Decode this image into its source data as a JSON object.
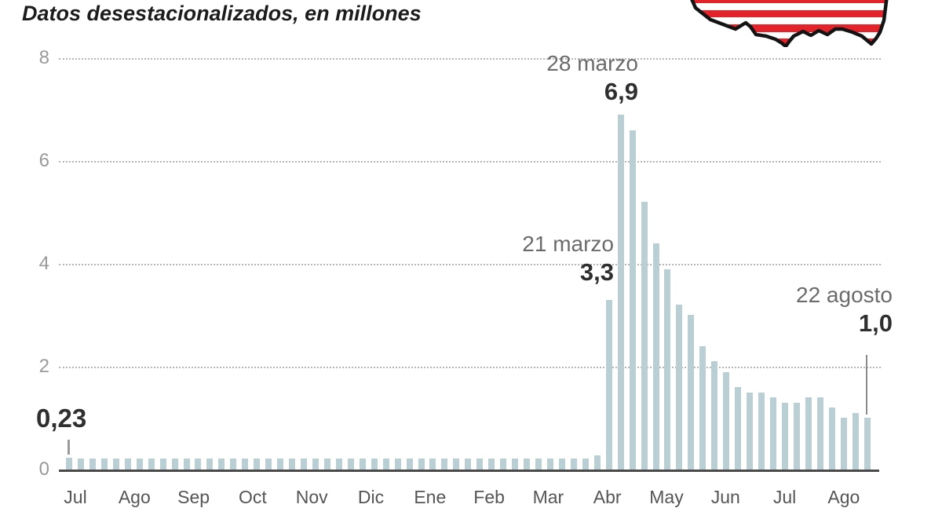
{
  "title": "Datos desestacionalizados, en millones",
  "y_axis": {
    "ticks": [
      8,
      6,
      4,
      2,
      0
    ]
  },
  "x_axis": {
    "month_labels": [
      "Jul",
      "Ago",
      "Sep",
      "Oct",
      "Nov",
      "Dic",
      "Ene",
      "Feb",
      "Mar",
      "Abr",
      "May",
      "Jun",
      "Jul",
      "Ago"
    ]
  },
  "annotations": {
    "first_bar": {
      "value": "0,23"
    },
    "mar21": {
      "date": "21 marzo",
      "value": "3,3"
    },
    "mar28": {
      "date": "28 marzo",
      "value": "6,9"
    },
    "aug22": {
      "date": "22 agosto",
      "value": "1,0"
    }
  },
  "icons": {
    "us_map": {
      "name": "us-map-flag-icon",
      "stripe_red": "#e2232a",
      "stripe_white": "#ffffff",
      "outline": "#141414"
    }
  },
  "colors": {
    "bar": "#b9cfd3",
    "grid": "#b5b5b5",
    "baseline": "#4a4a4a",
    "y_label": "#9a9a9a",
    "month_label": "#555555",
    "date_text": "#6b6b6b",
    "value_text": "#2f2f2f",
    "title": "#1c1c1c"
  },
  "chart_data": {
    "type": "bar",
    "title": "Datos desestacionalizados, en millones",
    "unit": "millones",
    "ylabel": "",
    "xlabel": "",
    "ylim": [
      0,
      8
    ],
    "y_ticks": [
      0,
      2,
      4,
      6,
      8
    ],
    "grid": "dotted horizontal",
    "frequency": "semanal",
    "values": [
      0.23,
      0.22,
      0.21,
      0.22,
      0.21,
      0.22,
      0.22,
      0.21,
      0.22,
      0.21,
      0.21,
      0.22,
      0.21,
      0.22,
      0.22,
      0.21,
      0.22,
      0.21,
      0.22,
      0.21,
      0.22,
      0.22,
      0.21,
      0.22,
      0.21,
      0.22,
      0.21,
      0.21,
      0.22,
      0.21,
      0.22,
      0.22,
      0.21,
      0.22,
      0.21,
      0.22,
      0.21,
      0.22,
      0.22,
      0.21,
      0.22,
      0.21,
      0.22,
      0.21,
      0.22,
      0.28,
      3.3,
      6.9,
      6.6,
      5.2,
      4.4,
      3.9,
      3.2,
      3.0,
      2.4,
      2.1,
      1.9,
      1.6,
      1.5,
      1.5,
      1.4,
      1.3,
      1.3,
      1.4,
      1.4,
      1.2,
      1.0,
      1.1,
      1.0
    ],
    "annotated_points": [
      {
        "index": 0,
        "label": "0,23",
        "value": 0.23
      },
      {
        "index": 46,
        "label": "21 marzo",
        "value": 3.3
      },
      {
        "index": 47,
        "label": "28 marzo",
        "value": 6.9
      },
      {
        "index": 68,
        "label": "22 agosto",
        "value": 1.0
      }
    ]
  }
}
